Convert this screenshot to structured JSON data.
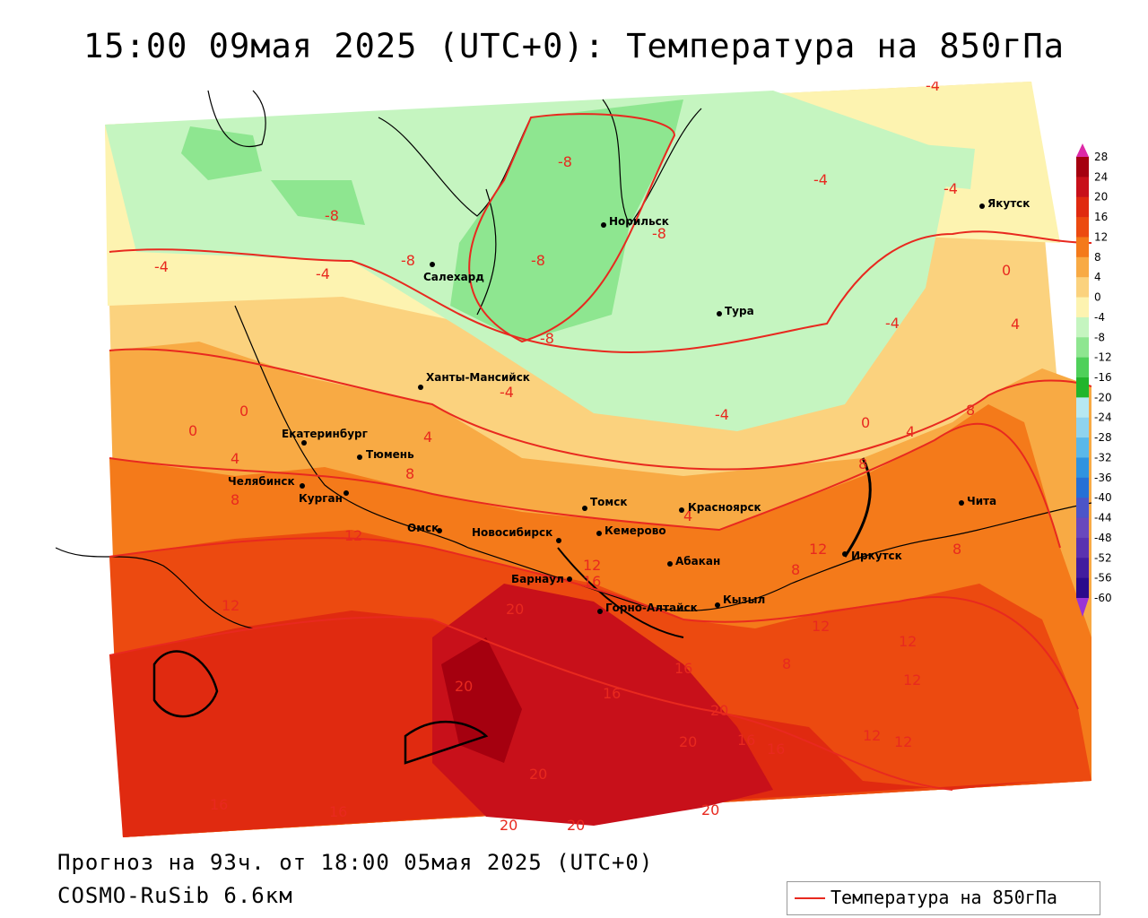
{
  "title": "15:00 09мая 2025 (UTC+0): Температура на 850гПа",
  "footer": {
    "forecast": "Прогноз на 93ч. от 18:00 05мая 2025 (UTC+0)",
    "model": "COSMO-RuSib 6.6км"
  },
  "legend": {
    "series_label": "Температура на 850гПа",
    "line_color": "#e8291f"
  },
  "colorbar": {
    "ticks": [
      "28",
      "24",
      "20",
      "16",
      "12",
      "8",
      "4",
      "0",
      "-4",
      "-8",
      "-12",
      "-16",
      "-20",
      "-24",
      "-28",
      "-32",
      "-36",
      "-40",
      "-44",
      "-48",
      "-52",
      "-56",
      "-60"
    ],
    "colors": [
      "#a5000f",
      "#c8101a",
      "#e02a10",
      "#ec4a10",
      "#f47a1a",
      "#f8aa44",
      "#fbd27e",
      "#fdf3b0",
      "#c5f5c0",
      "#8ee690",
      "#4fd05a",
      "#21b52c",
      "#b6e8f2",
      "#8fd3ef",
      "#5ab8ea",
      "#2f93e0",
      "#2670d6",
      "#4c55c8",
      "#6948bd",
      "#5a32b0",
      "#421c9e",
      "#2a0a8c"
    ]
  },
  "cities": [
    {
      "name": "Норильск"
    },
    {
      "name": "Салехард"
    },
    {
      "name": "Тура"
    },
    {
      "name": "Якутск"
    },
    {
      "name": "Ханты-Мансийск"
    },
    {
      "name": "Екатеринбург"
    },
    {
      "name": "Тюмень"
    },
    {
      "name": "Челябинск"
    },
    {
      "name": "Курган"
    },
    {
      "name": "Омск"
    },
    {
      "name": "Новосибирск"
    },
    {
      "name": "Томск"
    },
    {
      "name": "Красноярск"
    },
    {
      "name": "Кемерово"
    },
    {
      "name": "Абакан"
    },
    {
      "name": "Барнаул"
    },
    {
      "name": "Горно-Алтайск"
    },
    {
      "name": "Кызыл"
    },
    {
      "name": "Иркутск"
    },
    {
      "name": "Чита"
    }
  ],
  "isolines": [
    "-8",
    "-8",
    "-8",
    "-8",
    "-8",
    "-8",
    "-4",
    "-4",
    "-4",
    "-4",
    "-4",
    "-4",
    "-4",
    "-4",
    "0",
    "0",
    "0",
    "0",
    "4",
    "4",
    "4",
    "4",
    "4",
    "8",
    "8",
    "8",
    "8",
    "8",
    "8",
    "8",
    "12",
    "12",
    "12",
    "12",
    "12",
    "12",
    "12",
    "12",
    "12",
    "16",
    "16",
    "16",
    "16",
    "16",
    "16",
    "16",
    "20",
    "20",
    "20",
    "20",
    "20",
    "20",
    "20",
    "20"
  ]
}
